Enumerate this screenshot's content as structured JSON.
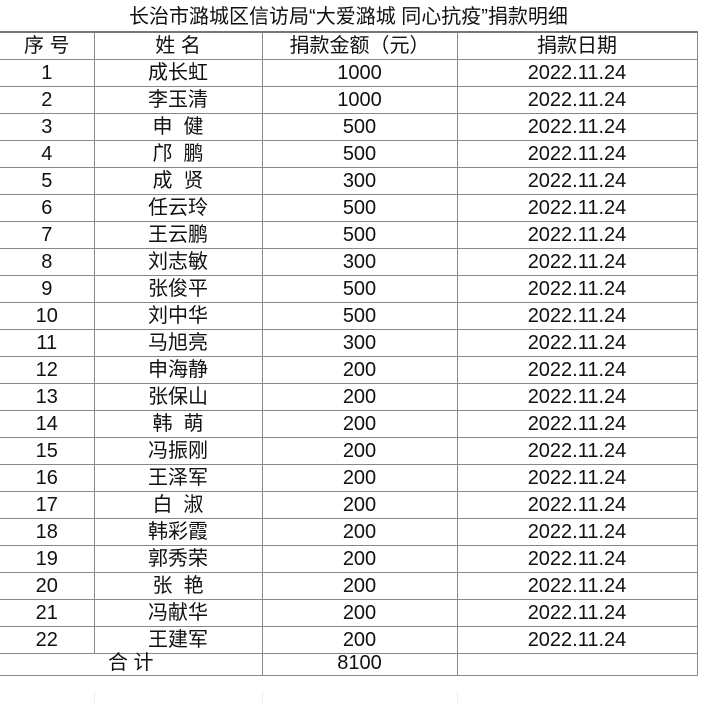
{
  "title": "长治市潞城区信访局“大爱潞城 同心抗疫”捐款明细",
  "headers": [
    "序 号",
    "姓 名",
    "捐款金额（元）",
    "捐款日期"
  ],
  "rows": [
    [
      "1",
      "成长虹",
      "1000",
      "2022.11.24"
    ],
    [
      "2",
      "李玉清",
      "1000",
      "2022.11.24"
    ],
    [
      "3",
      "申  健",
      "500",
      "2022.11.24"
    ],
    [
      "4",
      "邝  鹏",
      "500",
      "2022.11.24"
    ],
    [
      "5",
      "成  贤",
      "300",
      "2022.11.24"
    ],
    [
      "6",
      "任云玲",
      "500",
      "2022.11.24"
    ],
    [
      "7",
      "王云鹏",
      "500",
      "2022.11.24"
    ],
    [
      "8",
      "刘志敏",
      "300",
      "2022.11.24"
    ],
    [
      "9",
      "张俊平",
      "500",
      "2022.11.24"
    ],
    [
      "10",
      "刘中华",
      "500",
      "2022.11.24"
    ],
    [
      "11",
      "马旭亮",
      "300",
      "2022.11.24"
    ],
    [
      "12",
      "申海静",
      "200",
      "2022.11.24"
    ],
    [
      "13",
      "张保山",
      "200",
      "2022.11.24"
    ],
    [
      "14",
      "韩  萌",
      "200",
      "2022.11.24"
    ],
    [
      "15",
      "冯振刚",
      "200",
      "2022.11.24"
    ],
    [
      "16",
      "王泽军",
      "200",
      "2022.11.24"
    ],
    [
      "17",
      "白  淑",
      "200",
      "2022.11.24"
    ],
    [
      "18",
      "韩彩霞",
      "200",
      "2022.11.24"
    ],
    [
      "19",
      "郭秀荣",
      "200",
      "2022.11.24"
    ],
    [
      "20",
      "张  艳",
      "200",
      "2022.11.24"
    ],
    [
      "21",
      "冯献华",
      "200",
      "2022.11.24"
    ],
    [
      "22",
      "王建军",
      "200",
      "2022.11.24"
    ]
  ],
  "total": {
    "label": "合 计",
    "amount": "8100",
    "date": ""
  }
}
